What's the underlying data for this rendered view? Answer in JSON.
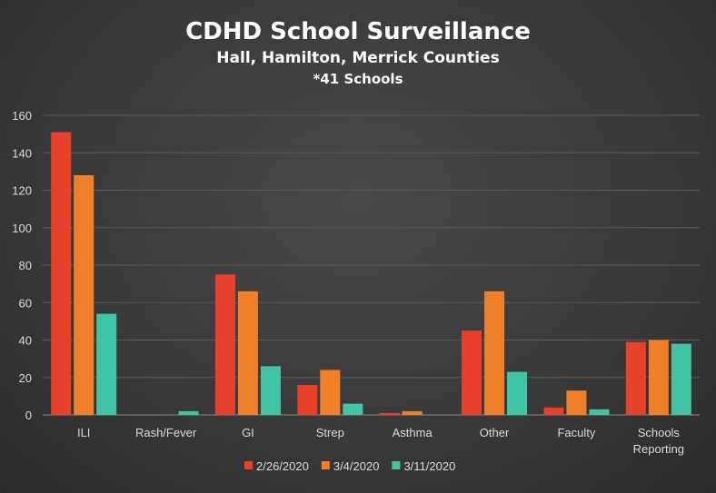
{
  "chart_data": {
    "type": "bar",
    "title": "CDHD School Surveillance",
    "subtitle": "Hall, Hamilton, Merrick Counties",
    "subtitle2": "*41 Schools",
    "categories": [
      "ILI",
      "Rash/Fever",
      "GI",
      "Strep",
      "Asthma",
      "Other",
      "Faculty",
      "Schools Reporting"
    ],
    "series": [
      {
        "name": "2/26/2020",
        "color": "#e8402a",
        "values": [
          151,
          0,
          75,
          16,
          1,
          45,
          4,
          39
        ]
      },
      {
        "name": "3/4/2020",
        "color": "#f07f2a",
        "values": [
          128,
          0,
          66,
          24,
          2,
          66,
          13,
          40
        ]
      },
      {
        "name": "3/11/2020",
        "color": "#40c4a4",
        "values": [
          54,
          2,
          26,
          6,
          0,
          23,
          3,
          38
        ]
      }
    ],
    "ylim": [
      0,
      160
    ],
    "yticks": [
      0,
      20,
      40,
      60,
      80,
      100,
      120,
      140,
      160
    ],
    "grid": true,
    "legend_position": "bottom"
  }
}
